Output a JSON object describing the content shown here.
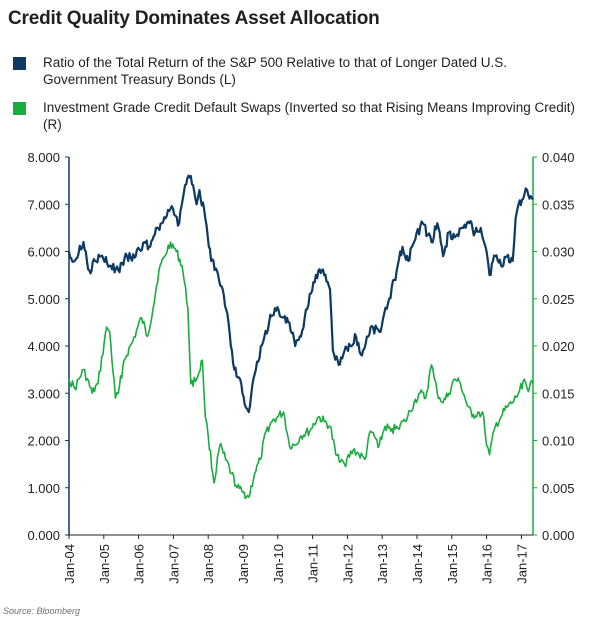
{
  "title": "Credit Quality Dominates Asset Allocation",
  "source": "Source: Bloomberg",
  "colors": {
    "sp_ratio": "#0d3a63",
    "cds": "#1aac3f"
  },
  "chart_data": {
    "type": "line",
    "title": "Credit Quality Dominates Asset Allocation",
    "x_ticks": [
      "Jan-04",
      "Jan-05",
      "Jan-06",
      "Jan-07",
      "Jan-08",
      "Jan-09",
      "Jan-10",
      "Jan-11",
      "Jan-12",
      "Jan-13",
      "Jan-14",
      "Jan-15",
      "Jan-16",
      "Jan-17"
    ],
    "xlim": [
      "2004-01",
      "2017-05"
    ],
    "y_left": {
      "ticks": [
        "0.000",
        "1.000",
        "2.000",
        "3.000",
        "4.000",
        "5.000",
        "6.000",
        "7.000",
        "8.000"
      ],
      "ylim": [
        0,
        8
      ]
    },
    "y_right": {
      "ticks": [
        "0.000",
        "0.005",
        "0.010",
        "0.015",
        "0.020",
        "0.025",
        "0.030",
        "0.035",
        "0.040"
      ],
      "ylim": [
        0,
        0.04
      ]
    },
    "legend_position": "top",
    "grid": false,
    "series": [
      {
        "name": "Ratio of the Total Return of the S&P 500 Relative to that of Longer Dated U.S. Government Treasury Bonds (L)",
        "axis": "left",
        "color": "#0d3a63",
        "points": [
          [
            "2004-01",
            6.0
          ],
          [
            "2004-03",
            5.8
          ],
          [
            "2004-06",
            6.2
          ],
          [
            "2004-08",
            5.6
          ],
          [
            "2004-10",
            5.8
          ],
          [
            "2004-12",
            5.9
          ],
          [
            "2005-03",
            5.7
          ],
          [
            "2005-06",
            5.6
          ],
          [
            "2005-09",
            5.9
          ],
          [
            "2005-12",
            5.9
          ],
          [
            "2006-03",
            6.2
          ],
          [
            "2006-05",
            6.1
          ],
          [
            "2006-07",
            6.5
          ],
          [
            "2006-09",
            6.6
          ],
          [
            "2006-12",
            6.9
          ],
          [
            "2007-03",
            6.6
          ],
          [
            "2007-05",
            7.4
          ],
          [
            "2007-07",
            7.6
          ],
          [
            "2007-09",
            7.0
          ],
          [
            "2007-10",
            7.3
          ],
          [
            "2007-12",
            6.7
          ],
          [
            "2008-02",
            5.8
          ],
          [
            "2008-04",
            5.6
          ],
          [
            "2008-06",
            5.2
          ],
          [
            "2008-08",
            4.5
          ],
          [
            "2008-10",
            3.5
          ],
          [
            "2008-12",
            3.3
          ],
          [
            "2009-02",
            2.7
          ],
          [
            "2009-03",
            2.6
          ],
          [
            "2009-05",
            3.4
          ],
          [
            "2009-08",
            4.1
          ],
          [
            "2009-10",
            4.5
          ],
          [
            "2009-12",
            4.8
          ],
          [
            "2010-03",
            4.6
          ],
          [
            "2010-05",
            4.5
          ],
          [
            "2010-07",
            4.0
          ],
          [
            "2010-09",
            4.2
          ],
          [
            "2010-12",
            5.1
          ],
          [
            "2011-03",
            5.6
          ],
          [
            "2011-05",
            5.5
          ],
          [
            "2011-07",
            5.2
          ],
          [
            "2011-08",
            3.9
          ],
          [
            "2011-10",
            3.6
          ],
          [
            "2011-12",
            3.9
          ],
          [
            "2012-02",
            4.0
          ],
          [
            "2012-04",
            4.2
          ],
          [
            "2012-06",
            3.8
          ],
          [
            "2012-09",
            4.4
          ],
          [
            "2012-12",
            4.3
          ],
          [
            "2013-03",
            4.9
          ],
          [
            "2013-06",
            5.6
          ],
          [
            "2013-08",
            6.1
          ],
          [
            "2013-10",
            5.8
          ],
          [
            "2013-12",
            6.2
          ],
          [
            "2014-03",
            6.6
          ],
          [
            "2014-06",
            6.2
          ],
          [
            "2014-08",
            6.6
          ],
          [
            "2014-10",
            5.9
          ],
          [
            "2014-12",
            6.4
          ],
          [
            "2015-02",
            6.3
          ],
          [
            "2015-05",
            6.5
          ],
          [
            "2015-07",
            6.6
          ],
          [
            "2015-09",
            6.4
          ],
          [
            "2015-11",
            6.5
          ],
          [
            "2016-01",
            6.0
          ],
          [
            "2016-02",
            5.5
          ],
          [
            "2016-04",
            5.9
          ],
          [
            "2016-06",
            5.7
          ],
          [
            "2016-08",
            5.9
          ],
          [
            "2016-10",
            5.8
          ],
          [
            "2016-11",
            6.7
          ],
          [
            "2016-12",
            7.0
          ],
          [
            "2017-02",
            7.2
          ],
          [
            "2017-03",
            7.3
          ],
          [
            "2017-05",
            7.1
          ]
        ]
      },
      {
        "name": "Investment Grade Credit Default Swaps (Inverted so that Rising Means Improving Credit) (R)",
        "axis": "right",
        "color": "#1aac3f",
        "points": [
          [
            "2004-01",
            0.0165
          ],
          [
            "2004-03",
            0.0155
          ],
          [
            "2004-06",
            0.0175
          ],
          [
            "2004-09",
            0.015
          ],
          [
            "2004-11",
            0.016
          ],
          [
            "2005-02",
            0.022
          ],
          [
            "2005-03",
            0.0215
          ],
          [
            "2005-05",
            0.0145
          ],
          [
            "2005-06",
            0.015
          ],
          [
            "2005-08",
            0.0185
          ],
          [
            "2005-11",
            0.0205
          ],
          [
            "2006-02",
            0.023
          ],
          [
            "2006-04",
            0.021
          ],
          [
            "2006-06",
            0.024
          ],
          [
            "2006-08",
            0.028
          ],
          [
            "2006-10",
            0.0295
          ],
          [
            "2006-12",
            0.031
          ],
          [
            "2007-02",
            0.03
          ],
          [
            "2007-04",
            0.0285
          ],
          [
            "2007-06",
            0.024
          ],
          [
            "2007-07",
            0.016
          ],
          [
            "2007-09",
            0.0165
          ],
          [
            "2007-11",
            0.0185
          ],
          [
            "2007-12",
            0.0125
          ],
          [
            "2008-01",
            0.0105
          ],
          [
            "2008-03",
            0.0055
          ],
          [
            "2008-05",
            0.0095
          ],
          [
            "2008-07",
            0.008
          ],
          [
            "2008-09",
            0.0065
          ],
          [
            "2008-11",
            0.005
          ],
          [
            "2009-01",
            0.0045
          ],
          [
            "2009-03",
            0.004
          ],
          [
            "2009-05",
            0.0065
          ],
          [
            "2009-07",
            0.008
          ],
          [
            "2009-09",
            0.011
          ],
          [
            "2009-11",
            0.012
          ],
          [
            "2010-01",
            0.0125
          ],
          [
            "2010-03",
            0.013
          ],
          [
            "2010-05",
            0.0095
          ],
          [
            "2010-07",
            0.0095
          ],
          [
            "2010-09",
            0.0105
          ],
          [
            "2010-12",
            0.011
          ],
          [
            "2011-03",
            0.0125
          ],
          [
            "2011-05",
            0.012
          ],
          [
            "2011-07",
            0.0115
          ],
          [
            "2011-09",
            0.0085
          ],
          [
            "2011-11",
            0.008
          ],
          [
            "2011-12",
            0.0075
          ],
          [
            "2012-03",
            0.009
          ],
          [
            "2012-05",
            0.0085
          ],
          [
            "2012-07",
            0.008
          ],
          [
            "2012-09",
            0.011
          ],
          [
            "2012-12",
            0.0095
          ],
          [
            "2013-02",
            0.0115
          ],
          [
            "2013-04",
            0.011
          ],
          [
            "2013-06",
            0.0115
          ],
          [
            "2013-09",
            0.012
          ],
          [
            "2013-12",
            0.014
          ],
          [
            "2014-02",
            0.015
          ],
          [
            "2014-04",
            0.0145
          ],
          [
            "2014-06",
            0.018
          ],
          [
            "2014-07",
            0.0165
          ],
          [
            "2014-08",
            0.015
          ],
          [
            "2014-10",
            0.014
          ],
          [
            "2014-12",
            0.015
          ],
          [
            "2015-02",
            0.0165
          ],
          [
            "2015-04",
            0.016
          ],
          [
            "2015-06",
            0.014
          ],
          [
            "2015-08",
            0.0125
          ],
          [
            "2015-10",
            0.013
          ],
          [
            "2015-12",
            0.0125
          ],
          [
            "2016-01",
            0.0095
          ],
          [
            "2016-02",
            0.0085
          ],
          [
            "2016-04",
            0.0115
          ],
          [
            "2016-06",
            0.0125
          ],
          [
            "2016-08",
            0.0135
          ],
          [
            "2016-10",
            0.014
          ],
          [
            "2016-12",
            0.015
          ],
          [
            "2017-02",
            0.0165
          ],
          [
            "2017-03",
            0.0155
          ],
          [
            "2017-05",
            0.016
          ]
        ]
      }
    ]
  }
}
